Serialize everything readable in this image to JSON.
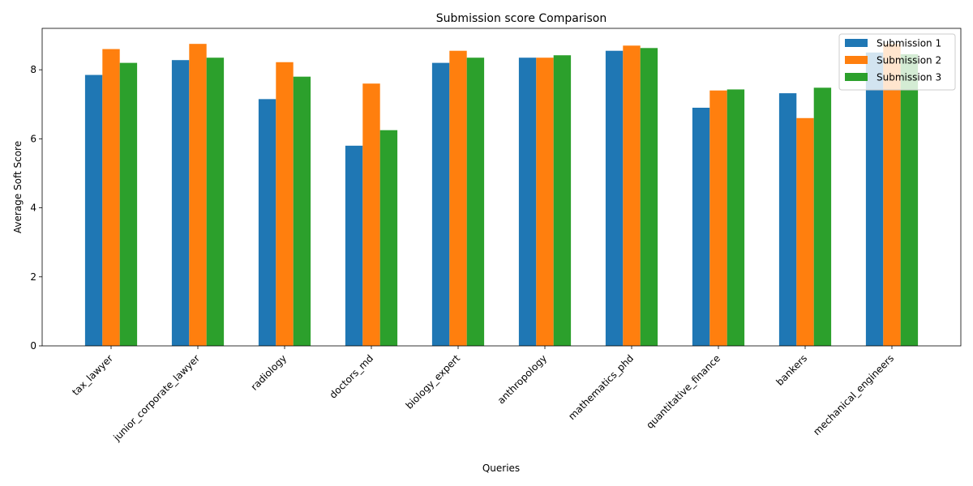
{
  "chart_data": {
    "type": "bar",
    "title": "Submission score Comparison",
    "xlabel": "Queries",
    "ylabel": "Average Soft Score",
    "categories": [
      "tax_lawyer",
      "junior_corporate_lawyer",
      "radiology",
      "doctors_md",
      "biology_expert",
      "anthropology",
      "mathematics_phd",
      "quantitative_finance",
      "bankers",
      "mechanical_engineers"
    ],
    "series": [
      {
        "name": "Submission 1",
        "color": "#1f77b4",
        "values": [
          7.85,
          8.28,
          7.15,
          5.8,
          8.2,
          8.35,
          8.55,
          6.9,
          7.32,
          8.5
        ]
      },
      {
        "name": "Submission 2",
        "color": "#ff7f0e",
        "values": [
          8.6,
          8.75,
          8.22,
          7.6,
          8.55,
          8.35,
          8.7,
          7.4,
          6.6,
          8.75
        ]
      },
      {
        "name": "Submission 3",
        "color": "#2ca02c",
        "values": [
          8.2,
          8.35,
          7.8,
          6.25,
          8.35,
          8.42,
          8.63,
          7.43,
          7.48,
          8.45
        ]
      }
    ],
    "ylim": [
      0,
      9.2
    ],
    "yticks": [
      0,
      2,
      4,
      6,
      8
    ],
    "grid": false,
    "legend_position": "top-right"
  }
}
